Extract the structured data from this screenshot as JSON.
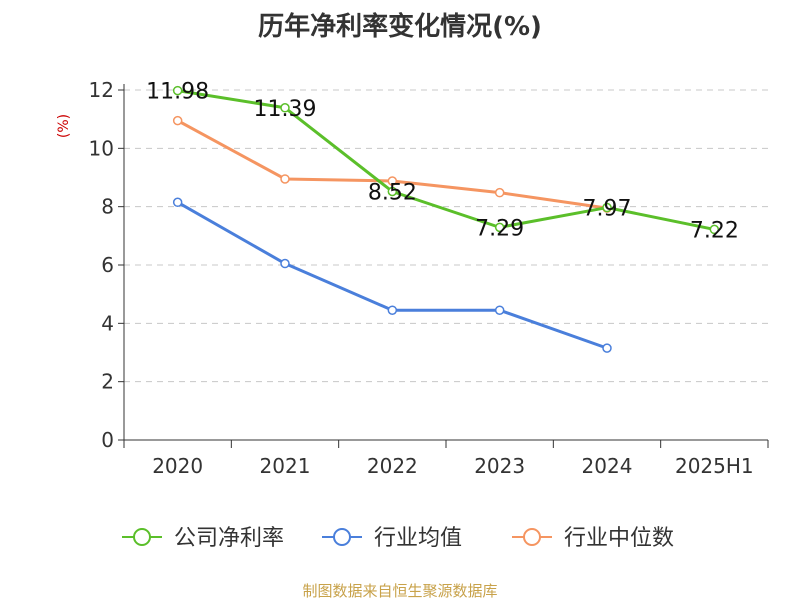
{
  "chart_data": {
    "type": "line",
    "title": "历年净利率变化情况(%)",
    "ylabel": "(%)",
    "xlabel": "",
    "categories": [
      "2020",
      "2021",
      "2022",
      "2023",
      "2024",
      "2025H1"
    ],
    "ylim": [
      0,
      12
    ],
    "yticks": [
      0,
      2,
      4,
      6,
      8,
      10,
      12
    ],
    "grid": "horizontal-dashed",
    "legend_position": "bottom",
    "series": [
      {
        "name": "公司净利率",
        "color": "#5bbf2a",
        "values": [
          11.98,
          11.39,
          8.52,
          7.29,
          7.97,
          7.22
        ],
        "labels": [
          "11.98",
          "11.39",
          "8.52",
          "7.29",
          "7.97",
          "7.22"
        ]
      },
      {
        "name": "行业均值",
        "color": "#4a7fdb",
        "values": [
          8.15,
          6.05,
          4.45,
          4.45,
          3.15,
          null
        ]
      },
      {
        "name": "行业中位数",
        "color": "#f59561",
        "values": [
          10.95,
          8.95,
          8.88,
          8.48,
          7.95,
          null
        ]
      }
    ]
  },
  "source": "制图数据来自恒生聚源数据库"
}
